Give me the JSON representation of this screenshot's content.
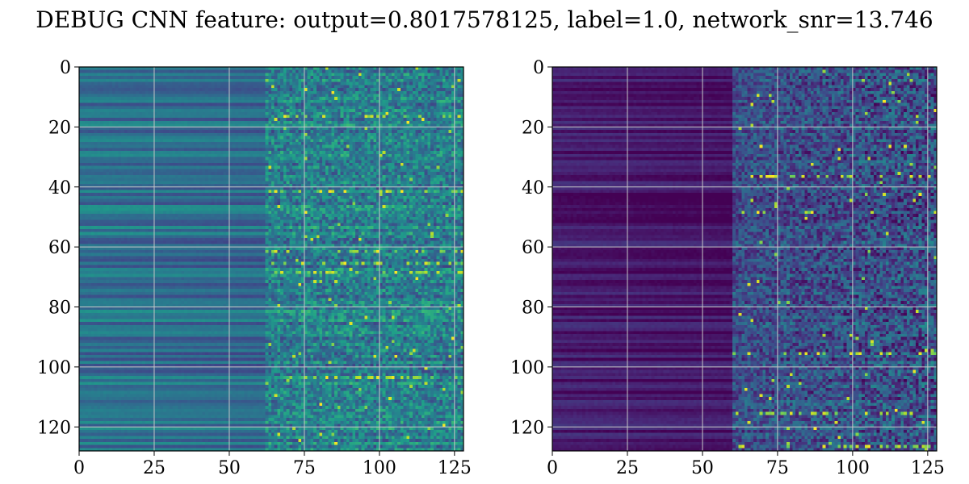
{
  "chart_data": {
    "title": "DEBUG CNN feature: output=0.8017578125, label=1.0, network_snr=13.746",
    "panels": [
      {
        "type": "heatmap",
        "colormap": "viridis",
        "rows": 128,
        "cols": 128,
        "xlim": [
          0,
          128
        ],
        "ylim": [
          128,
          0
        ],
        "xticks": [
          0,
          25,
          50,
          75,
          100,
          125
        ],
        "yticks": [
          0,
          20,
          40,
          60,
          80,
          100,
          120
        ],
        "grid": true,
        "value_range": [
          0,
          1
        ],
        "description_profile": {
          "uniform_region_cols": [
            0,
            62
          ],
          "uniform_level": 0.38,
          "noisy_region_cols": [
            62,
            128
          ],
          "noisy_level": 0.42,
          "hot_rows": [
            16,
            41,
            61,
            65,
            68,
            103
          ]
        }
      },
      {
        "type": "heatmap",
        "colormap": "viridis",
        "rows": 128,
        "cols": 128,
        "xlim": [
          0,
          128
        ],
        "ylim": [
          128,
          0
        ],
        "xticks": [
          0,
          25,
          50,
          75,
          100,
          125
        ],
        "yticks": [
          0,
          20,
          40,
          60,
          80,
          100,
          120
        ],
        "grid": true,
        "value_range": [
          0,
          1
        ],
        "description_profile": {
          "uniform_region_cols": [
            0,
            60
          ],
          "uniform_level": 0.08,
          "noisy_region_cols": [
            60,
            128
          ],
          "noisy_level": 0.22,
          "hot_rows": [
            36,
            48,
            95,
            115,
            126
          ]
        }
      }
    ]
  }
}
